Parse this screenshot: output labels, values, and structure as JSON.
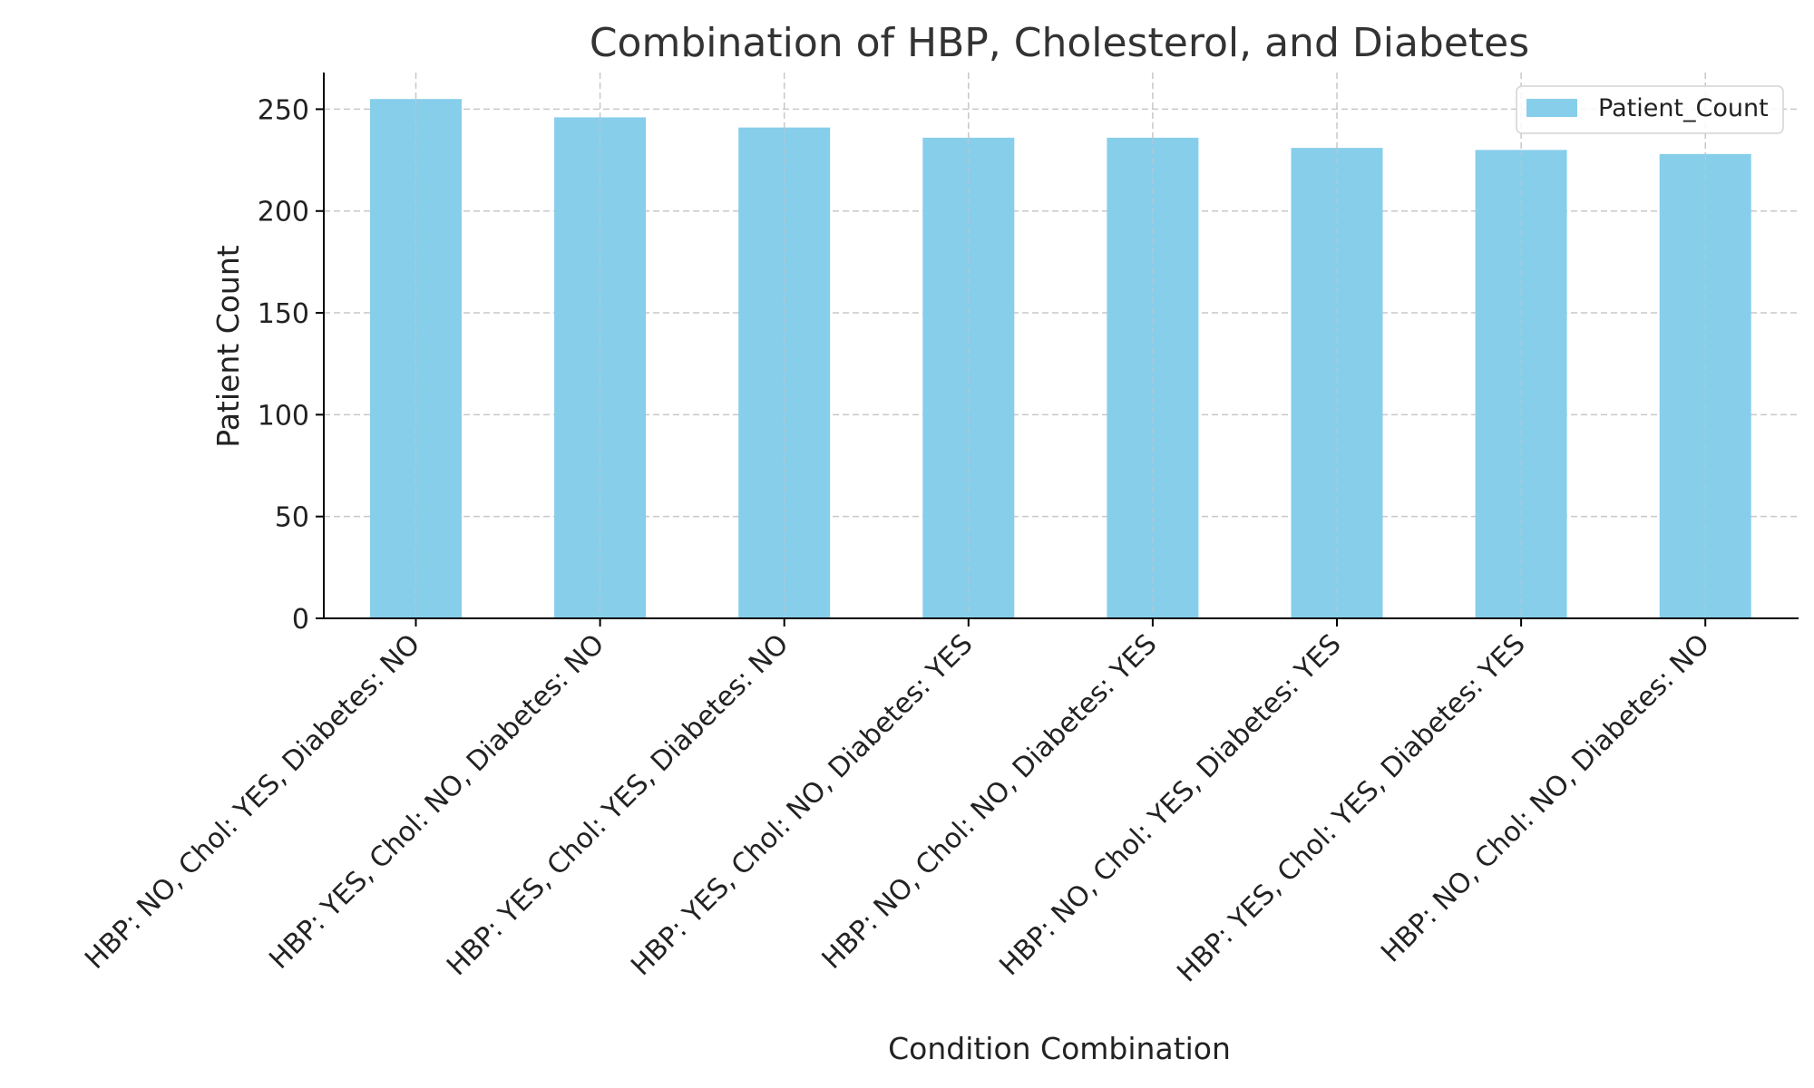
{
  "chart_data": {
    "type": "bar",
    "title": "Combination of HBP, Cholesterol, and Diabetes",
    "xlabel": "Condition Combination",
    "ylabel": "Patient Count",
    "categories": [
      "HBP: NO, Chol: YES, Diabetes: NO",
      "HBP: YES, Chol: NO, Diabetes: NO",
      "HBP: YES, Chol: YES, Diabetes: NO",
      "HBP: YES, Chol: NO, Diabetes: YES",
      "HBP: NO, Chol: NO, Diabetes: YES",
      "HBP: NO, Chol: YES, Diabetes: YES",
      "HBP: YES, Chol: YES, Diabetes: YES",
      "HBP: NO, Chol: NO, Diabetes: NO"
    ],
    "series": [
      {
        "name": "Patient_Count",
        "values": [
          255,
          246,
          241,
          236,
          236,
          231,
          230,
          228
        ]
      }
    ],
    "ylim": [
      0,
      268
    ],
    "yticks": [
      0,
      50,
      100,
      150,
      200,
      250
    ],
    "grid": true,
    "legend": "top-right",
    "colors": {
      "bar": "#87ceeb",
      "grid": "#c8c8c8",
      "axis": "#000000"
    }
  }
}
